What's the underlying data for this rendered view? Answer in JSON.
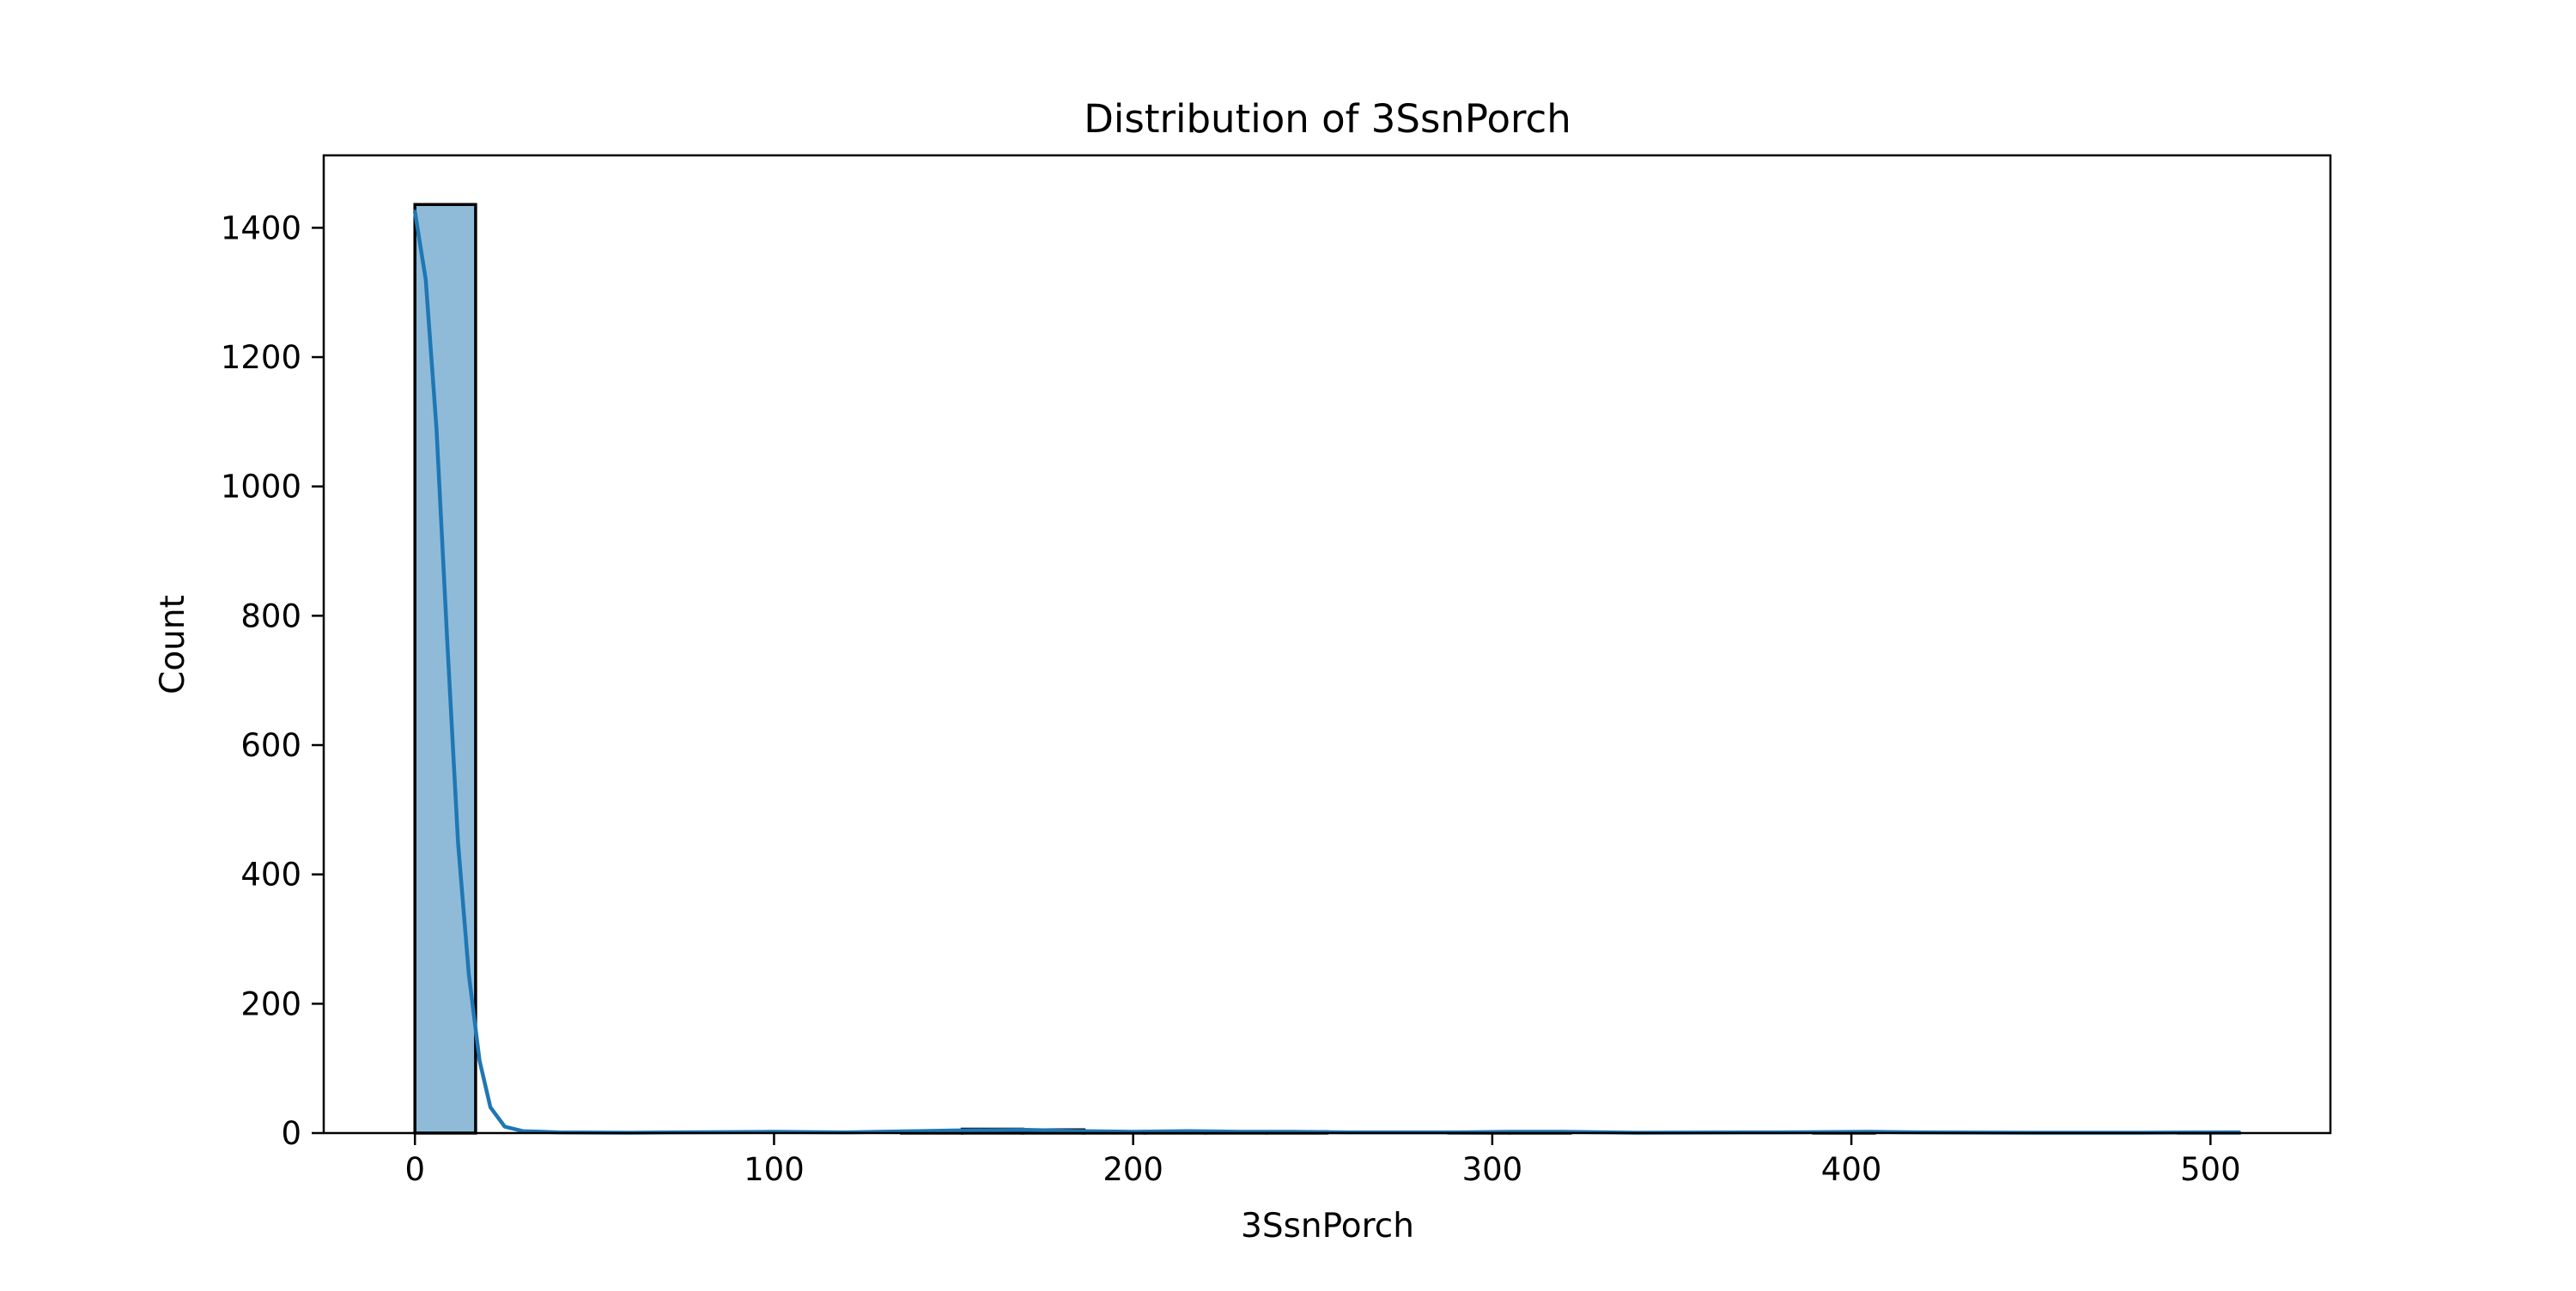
{
  "chart_data": {
    "type": "bar",
    "subtype": "histogram_with_kde",
    "title": "Distribution of 3SsnPorch",
    "xlabel": "3SsnPorch",
    "ylabel": "Count",
    "xlim": [
      -25.4,
      533.4
    ],
    "ylim": [
      0,
      1512
    ],
    "xticks": [
      0,
      100,
      200,
      300,
      400,
      500
    ],
    "yticks": [
      0,
      200,
      400,
      600,
      800,
      1000,
      1200,
      1400
    ],
    "bin_width": 16.9,
    "bins": [
      {
        "x0": 0,
        "x1": 16.9,
        "count": 1436
      },
      {
        "x0": 16.9,
        "x1": 33.9,
        "count": 0
      },
      {
        "x0": 33.9,
        "x1": 50.8,
        "count": 0
      },
      {
        "x0": 50.8,
        "x1": 67.7,
        "count": 0
      },
      {
        "x0": 67.7,
        "x1": 84.7,
        "count": 0
      },
      {
        "x0": 84.7,
        "x1": 101.6,
        "count": 0
      },
      {
        "x0": 101.6,
        "x1": 118.5,
        "count": 0
      },
      {
        "x0": 118.5,
        "x1": 135.5,
        "count": 0
      },
      {
        "x0": 135.5,
        "x1": 152.4,
        "count": 3
      },
      {
        "x0": 152.4,
        "x1": 169.3,
        "count": 6
      },
      {
        "x0": 169.3,
        "x1": 186.3,
        "count": 5
      },
      {
        "x0": 186.3,
        "x1": 203.2,
        "count": 1
      },
      {
        "x0": 203.2,
        "x1": 220.1,
        "count": 2
      },
      {
        "x0": 220.1,
        "x1": 237.1,
        "count": 1
      },
      {
        "x0": 237.1,
        "x1": 254.0,
        "count": 2
      },
      {
        "x0": 254.0,
        "x1": 270.9,
        "count": 0
      },
      {
        "x0": 270.9,
        "x1": 287.9,
        "count": 0
      },
      {
        "x0": 287.9,
        "x1": 304.8,
        "count": 1
      },
      {
        "x0": 304.8,
        "x1": 321.7,
        "count": 2
      },
      {
        "x0": 321.7,
        "x1": 338.7,
        "count": 0
      },
      {
        "x0": 338.7,
        "x1": 355.6,
        "count": 0
      },
      {
        "x0": 355.6,
        "x1": 372.5,
        "count": 0
      },
      {
        "x0": 372.5,
        "x1": 389.5,
        "count": 0
      },
      {
        "x0": 389.5,
        "x1": 406.4,
        "count": 1
      },
      {
        "x0": 406.4,
        "x1": 423.3,
        "count": 0
      },
      {
        "x0": 423.3,
        "x1": 440.3,
        "count": 0
      },
      {
        "x0": 440.3,
        "x1": 457.2,
        "count": 0
      },
      {
        "x0": 457.2,
        "x1": 474.1,
        "count": 0
      },
      {
        "x0": 474.1,
        "x1": 491.1,
        "count": 0
      },
      {
        "x0": 491.1,
        "x1": 508.0,
        "count": 1
      }
    ],
    "kde": [
      [
        0,
        1425
      ],
      [
        3,
        1320
      ],
      [
        6,
        1090
      ],
      [
        9,
        760
      ],
      [
        12,
        450
      ],
      [
        15,
        245
      ],
      [
        18,
        112
      ],
      [
        21,
        40
      ],
      [
        25,
        10
      ],
      [
        30,
        3
      ],
      [
        40,
        1
      ],
      [
        60,
        0.5
      ],
      [
        100,
        2
      ],
      [
        120,
        1
      ],
      [
        140,
        3
      ],
      [
        150,
        4
      ],
      [
        170,
        5
      ],
      [
        185,
        3
      ],
      [
        200,
        2
      ],
      [
        215,
        3
      ],
      [
        230,
        2
      ],
      [
        245,
        2
      ],
      [
        260,
        1
      ],
      [
        290,
        1
      ],
      [
        305,
        2
      ],
      [
        320,
        2
      ],
      [
        340,
        0.5
      ],
      [
        380,
        1
      ],
      [
        405,
        2
      ],
      [
        420,
        1
      ],
      [
        450,
        0.5
      ],
      [
        480,
        0.5
      ],
      [
        508,
        1
      ]
    ],
    "colors": {
      "bar_fill": "#8fbbd9",
      "bar_edge": "#000000",
      "kde_line": "#1f77b4",
      "axes": "#000000"
    },
    "grid": false,
    "legend": "none"
  }
}
